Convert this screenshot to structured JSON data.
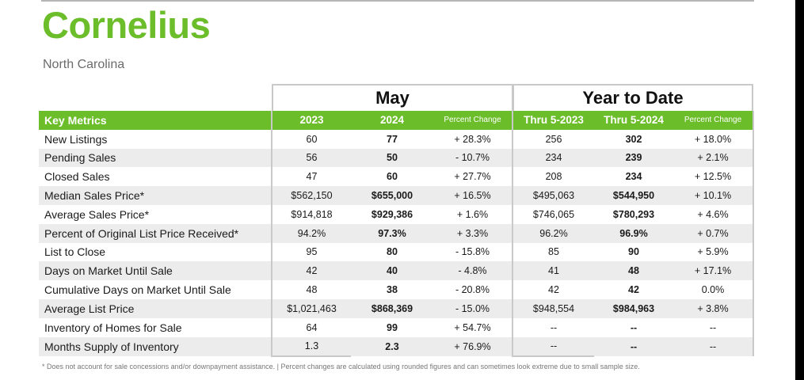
{
  "page": {
    "title": "Cornelius",
    "subtitle": "North Carolina"
  },
  "colors": {
    "accent": "#6cbd2a",
    "stripe": "#ececec",
    "border": "#c9c9c9"
  },
  "groups": {
    "may": "May",
    "ytd": "Year to Date"
  },
  "header": {
    "metric": "Key Metrics",
    "may_2023": "2023",
    "may_2024": "2024",
    "may_pct": "Percent Change",
    "ytd_2023": "Thru 5-2023",
    "ytd_2024": "Thru 5-2024",
    "ytd_pct": "Percent Change"
  },
  "rows": [
    {
      "label": "New Listings",
      "may_2023": "60",
      "may_2024": "77",
      "may_pct": "+ 28.3%",
      "ytd_2023": "256",
      "ytd_2024": "302",
      "ytd_pct": "+ 18.0%"
    },
    {
      "label": "Pending Sales",
      "may_2023": "56",
      "may_2024": "50",
      "may_pct": "- 10.7%",
      "ytd_2023": "234",
      "ytd_2024": "239",
      "ytd_pct": "+ 2.1%"
    },
    {
      "label": "Closed Sales",
      "may_2023": "47",
      "may_2024": "60",
      "may_pct": "+ 27.7%",
      "ytd_2023": "208",
      "ytd_2024": "234",
      "ytd_pct": "+ 12.5%"
    },
    {
      "label": "Median Sales Price*",
      "may_2023": "$562,150",
      "may_2024": "$655,000",
      "may_pct": "+ 16.5%",
      "ytd_2023": "$495,063",
      "ytd_2024": "$544,950",
      "ytd_pct": "+ 10.1%"
    },
    {
      "label": "Average Sales Price*",
      "may_2023": "$914,818",
      "may_2024": "$929,386",
      "may_pct": "+ 1.6%",
      "ytd_2023": "$746,065",
      "ytd_2024": "$780,293",
      "ytd_pct": "+ 4.6%"
    },
    {
      "label": "Percent of Original List Price Received*",
      "may_2023": "94.2%",
      "may_2024": "97.3%",
      "may_pct": "+ 3.3%",
      "ytd_2023": "96.2%",
      "ytd_2024": "96.9%",
      "ytd_pct": "+ 0.7%"
    },
    {
      "label": "List to Close",
      "may_2023": "95",
      "may_2024": "80",
      "may_pct": "- 15.8%",
      "ytd_2023": "85",
      "ytd_2024": "90",
      "ytd_pct": "+ 5.9%"
    },
    {
      "label": "Days on Market Until Sale",
      "may_2023": "42",
      "may_2024": "40",
      "may_pct": "- 4.8%",
      "ytd_2023": "41",
      "ytd_2024": "48",
      "ytd_pct": "+ 17.1%"
    },
    {
      "label": "Cumulative Days on Market Until Sale",
      "may_2023": "48",
      "may_2024": "38",
      "may_pct": "- 20.8%",
      "ytd_2023": "42",
      "ytd_2024": "42",
      "ytd_pct": "0.0%"
    },
    {
      "label": "Average List Price",
      "may_2023": "$1,021,463",
      "may_2024": "$868,369",
      "may_pct": "- 15.0%",
      "ytd_2023": "$948,554",
      "ytd_2024": "$984,963",
      "ytd_pct": "+ 3.8%"
    },
    {
      "label": "Inventory of Homes for Sale",
      "may_2023": "64",
      "may_2024": "99",
      "may_pct": "+ 54.7%",
      "ytd_2023": "--",
      "ytd_2024": "--",
      "ytd_pct": "--"
    },
    {
      "label": "Months Supply of Inventory",
      "may_2023": "1.3",
      "may_2024": "2.3",
      "may_pct": "+ 76.9%",
      "ytd_2023": "--",
      "ytd_2024": "--",
      "ytd_pct": "--"
    }
  ],
  "footnote": "* Does not account for sale concessions and/or downpayment assistance.  |  Percent changes are calculated using rounded figures and can sometimes look extreme due to small sample size."
}
